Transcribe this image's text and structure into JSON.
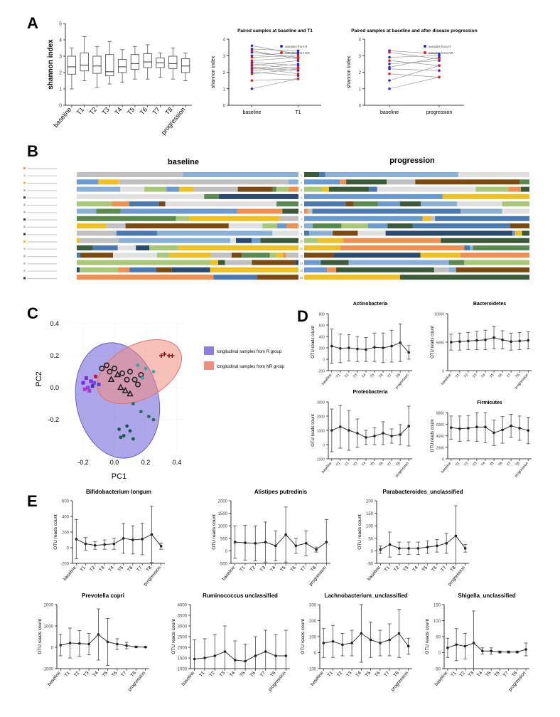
{
  "panel_labels": [
    "A",
    "B",
    "C",
    "D",
    "E"
  ],
  "colors": {
    "r_group": "#6a5cd6",
    "nr_group": "#f08c80",
    "line": "#333333",
    "axis": "#000000",
    "box": "#555555"
  },
  "chart_data": [
    {
      "id": "A1",
      "type": "box",
      "title": "",
      "ylabel": "shannon index",
      "ylim": [
        0,
        5
      ],
      "yticks": [
        0,
        1,
        2,
        3,
        4,
        5
      ],
      "categories": [
        "baseline",
        "T1",
        "T2",
        "T3",
        "T4",
        "T5",
        "T6",
        "T7",
        "T8",
        "progression"
      ],
      "boxes": [
        {
          "min": 1.0,
          "q1": 1.9,
          "median": 2.35,
          "q3": 3.0,
          "max": 3.5
        },
        {
          "min": 1.5,
          "q1": 2.1,
          "median": 2.45,
          "q3": 3.2,
          "max": 4.2
        },
        {
          "min": 1.1,
          "q1": 1.95,
          "median": 2.4,
          "q3": 3.0,
          "max": 3.6
        },
        {
          "min": 1.3,
          "q1": 1.8,
          "median": 2.05,
          "q3": 3.1,
          "max": 3.9
        },
        {
          "min": 1.4,
          "q1": 2.0,
          "median": 2.35,
          "q3": 2.8,
          "max": 3.4
        },
        {
          "min": 1.6,
          "q1": 2.2,
          "median": 2.55,
          "q3": 3.1,
          "max": 3.6
        },
        {
          "min": 1.6,
          "q1": 2.3,
          "median": 2.65,
          "q3": 3.15,
          "max": 3.7
        },
        {
          "min": 1.7,
          "q1": 2.3,
          "median": 2.6,
          "q3": 2.9,
          "max": 3.2
        },
        {
          "min": 1.6,
          "q1": 2.25,
          "median": 2.55,
          "q3": 3.0,
          "max": 3.5
        },
        {
          "min": 1.5,
          "q1": 2.0,
          "median": 2.4,
          "q3": 2.85,
          "max": 3.2
        }
      ]
    },
    {
      "id": "A2",
      "type": "paired",
      "title": "Paired samples at baseline and T1",
      "ylabel": "shannon index",
      "ylim": [
        0,
        4
      ],
      "yticks": [
        0,
        1,
        2,
        3,
        4
      ],
      "categories": [
        "baseline",
        "T1"
      ],
      "legend": [
        "samples from R",
        "samples from NR"
      ],
      "pairs_R": [
        [
          3.6,
          3.1
        ],
        [
          3.4,
          3.3
        ],
        [
          3.2,
          2.9
        ],
        [
          3.0,
          3.2
        ],
        [
          2.6,
          2.4
        ],
        [
          2.4,
          2.7
        ],
        [
          2.3,
          2.1
        ],
        [
          2.2,
          2.5
        ],
        [
          2.0,
          1.8
        ],
        [
          1.0,
          1.6
        ]
      ],
      "pairs_NR": [
        [
          3.3,
          2.8
        ],
        [
          2.9,
          3.0
        ],
        [
          2.7,
          2.9
        ],
        [
          2.3,
          1.9
        ],
        [
          2.1,
          2.3
        ],
        [
          1.9,
          2.2
        ],
        [
          1.5,
          1.6
        ],
        [
          2.5,
          2.2
        ]
      ]
    },
    {
      "id": "A3",
      "type": "paired",
      "title": "Paired samples at baseline and after disease progression",
      "ylabel": "shannon index",
      "ylim": [
        0,
        4
      ],
      "yticks": [
        0,
        1,
        2,
        3,
        4
      ],
      "categories": [
        "baseline",
        "progression"
      ],
      "legend": [
        "samples from R",
        "samples from NR"
      ],
      "pairs_R": [
        [
          3.3,
          3.1
        ],
        [
          2.9,
          3.0
        ],
        [
          2.5,
          2.7
        ],
        [
          2.3,
          2.9
        ],
        [
          2.2,
          2.1
        ],
        [
          1.5,
          2.4
        ],
        [
          1.0,
          1.7
        ]
      ],
      "pairs_NR": [
        [
          3.2,
          2.8
        ],
        [
          2.7,
          2.4
        ],
        [
          1.9,
          1.7
        ]
      ]
    },
    {
      "id": "B",
      "type": "stacked-bar",
      "titles": [
        "baseline",
        "progression"
      ],
      "legend_count": 16,
      "rows": 15
    },
    {
      "id": "C",
      "type": "scatter",
      "xlabel": "PC1",
      "ylabel": "PC2",
      "xlim": [
        -0.3,
        0.45
      ],
      "ylim": [
        -0.4,
        0.4
      ],
      "xticks": [
        -0.2,
        0.0,
        0.2,
        0.4
      ],
      "xtick_labels": [
        "-0.2",
        "0.0",
        "0.2",
        "0.4"
      ],
      "yticks": [
        -0.2,
        0.0,
        0.2,
        0.4
      ],
      "ytick_labels": [
        "-0.2",
        "0.0",
        "0.2",
        "0.4"
      ],
      "legend": [
        "longitudinal samples from R group",
        "longitudinal samples from NR group"
      ],
      "points": [
        {
          "x": -0.2,
          "y": 0.03,
          "c": "#7b2be0",
          "m": "sq"
        },
        {
          "x": -0.18,
          "y": 0.06,
          "c": "#7b2be0",
          "m": "sq"
        },
        {
          "x": -0.17,
          "y": 0.0,
          "c": "#9b3be0",
          "m": "sq"
        },
        {
          "x": -0.15,
          "y": 0.04,
          "c": "#7b2be0",
          "m": "sq"
        },
        {
          "x": -0.16,
          "y": -0.02,
          "c": "#a040d0",
          "m": "sq"
        },
        {
          "x": -0.13,
          "y": 0.03,
          "c": "#8040e0",
          "m": "sq"
        },
        {
          "x": -0.19,
          "y": -0.01,
          "c": "#b030d0",
          "m": "sq"
        },
        {
          "x": -0.12,
          "y": 0.07,
          "c": "#c02040",
          "m": "sq"
        },
        {
          "x": -0.14,
          "y": 0.01,
          "c": "#5030c0",
          "m": "sq"
        },
        {
          "x": -0.1,
          "y": 0.02,
          "c": "#6040d0",
          "m": "sq"
        },
        {
          "x": -0.08,
          "y": 0.12,
          "c": "#222222",
          "m": "o"
        },
        {
          "x": -0.05,
          "y": 0.14,
          "c": "#222222",
          "m": "o"
        },
        {
          "x": -0.03,
          "y": 0.1,
          "c": "#222222",
          "m": "o"
        },
        {
          "x": 0.0,
          "y": 0.12,
          "c": "#222222",
          "m": "o"
        },
        {
          "x": 0.05,
          "y": 0.09,
          "c": "#222222",
          "m": "o"
        },
        {
          "x": 0.08,
          "y": 0.05,
          "c": "#222222",
          "m": "o"
        },
        {
          "x": 0.13,
          "y": 0.05,
          "c": "#222222",
          "m": "o"
        },
        {
          "x": 0.1,
          "y": 0.1,
          "c": "#222222",
          "m": "o"
        },
        {
          "x": 0.15,
          "y": 0.02,
          "c": "#222222",
          "m": "o"
        },
        {
          "x": 0.17,
          "y": 0.08,
          "c": "#222222",
          "m": "o"
        },
        {
          "x": -0.02,
          "y": 0.05,
          "c": "#222222",
          "m": "tri"
        },
        {
          "x": 0.02,
          "y": 0.08,
          "c": "#222222",
          "m": "tri"
        },
        {
          "x": 0.04,
          "y": 0.0,
          "c": "#222222",
          "m": "tri"
        },
        {
          "x": 0.07,
          "y": -0.02,
          "c": "#222222",
          "m": "tri"
        },
        {
          "x": 0.1,
          "y": -0.04,
          "c": "#222222",
          "m": "tri"
        },
        {
          "x": 0.15,
          "y": 0.14,
          "c": "#3aa89a",
          "m": "dot"
        },
        {
          "x": 0.2,
          "y": 0.12,
          "c": "#3aa89a",
          "m": "dot"
        },
        {
          "x": 0.25,
          "y": 0.1,
          "c": "#3aa89a",
          "m": "dot"
        },
        {
          "x": 0.18,
          "y": 0.06,
          "c": "#3aa89a",
          "m": "dot"
        },
        {
          "x": 0.12,
          "y": -0.1,
          "c": "#2a6a5a",
          "m": "dot"
        },
        {
          "x": 0.17,
          "y": -0.15,
          "c": "#2a6a5a",
          "m": "dot"
        },
        {
          "x": 0.22,
          "y": -0.18,
          "c": "#2a6a5a",
          "m": "dot"
        },
        {
          "x": 0.25,
          "y": -0.2,
          "c": "#2a6a5a",
          "m": "dot"
        },
        {
          "x": 0.03,
          "y": -0.26,
          "c": "#1a5a4a",
          "m": "dot"
        },
        {
          "x": 0.06,
          "y": -0.3,
          "c": "#1a5a4a",
          "m": "dot"
        },
        {
          "x": 0.1,
          "y": -0.27,
          "c": "#1a5a4a",
          "m": "dot"
        },
        {
          "x": 0.12,
          "y": -0.32,
          "c": "#1a5a4a",
          "m": "dot"
        },
        {
          "x": 0.08,
          "y": -0.24,
          "c": "#1a5a4a",
          "m": "dot"
        },
        {
          "x": 0.04,
          "y": -0.31,
          "c": "#1a5a4a",
          "m": "dot"
        },
        {
          "x": 0.3,
          "y": 0.2,
          "c": "#8a1010",
          "m": "plus"
        },
        {
          "x": 0.32,
          "y": 0.21,
          "c": "#8a1010",
          "m": "plus"
        },
        {
          "x": 0.35,
          "y": 0.2,
          "c": "#8a1010",
          "m": "plus"
        },
        {
          "x": 0.37,
          "y": 0.2,
          "c": "#8a1010",
          "m": "plus"
        }
      ]
    },
    {
      "id": "D1",
      "type": "line-error",
      "title": "Actinobacteria",
      "ylabel": "OTU reads count",
      "ylim": [
        -200,
        800
      ],
      "yticks": [
        -200,
        0,
        200,
        400,
        600,
        800
      ],
      "categories": [
        "baseline",
        "T1",
        "T2",
        "T3",
        "T4",
        "T5",
        "T6",
        "T7",
        "T8",
        "progression"
      ],
      "values": [
        230,
        190,
        200,
        180,
        170,
        210,
        200,
        230,
        290,
        120
      ],
      "errors": [
        300,
        250,
        230,
        220,
        210,
        250,
        260,
        280,
        330,
        120
      ]
    },
    {
      "id": "D2",
      "type": "line-error",
      "title": "Bacteroidetes",
      "ylabel": "OTU reads count",
      "ylim": [
        0,
        10000
      ],
      "yticks": [
        0,
        5000,
        10000
      ],
      "categories": [
        "baseline",
        "T1",
        "T2",
        "T3",
        "T4",
        "T5",
        "T6",
        "T7",
        "T8",
        "progression"
      ],
      "values": [
        5000,
        5100,
        5200,
        5300,
        5400,
        5800,
        5400,
        5100,
        5200,
        5300
      ],
      "errors": [
        1400,
        1500,
        1500,
        1600,
        1700,
        2000,
        1600,
        1500,
        1500,
        1500
      ]
    },
    {
      "id": "D3",
      "type": "line-error",
      "title": "Proteobacteria",
      "ylabel": "OTU reads count",
      "ylim": [
        -1000,
        3000
      ],
      "yticks": [
        -1000,
        0,
        1000,
        2000,
        3000
      ],
      "categories": [
        "baseline",
        "T1",
        "T2",
        "T3",
        "T4",
        "T5",
        "T6",
        "T7",
        "T8",
        "progression"
      ],
      "values": [
        1000,
        1250,
        1000,
        800,
        500,
        600,
        800,
        600,
        700,
        1300
      ],
      "errors": [
        1500,
        1500,
        1400,
        1000,
        500,
        600,
        800,
        500,
        700,
        1400
      ]
    },
    {
      "id": "D4",
      "type": "line-error",
      "title": "Firmicutes",
      "ylabel": "OTU reads count",
      "ylim": [
        0,
        8000
      ],
      "yticks": [
        0,
        2000,
        4000,
        6000,
        8000
      ],
      "categories": [
        "baseline",
        "T1",
        "T2",
        "T3",
        "T4",
        "T5",
        "T6",
        "T7",
        "T8",
        "progression"
      ],
      "values": [
        5400,
        5200,
        5300,
        5500,
        5500,
        4500,
        5000,
        5700,
        5300,
        4900
      ],
      "errors": [
        2000,
        2200,
        2200,
        2500,
        2700,
        2200,
        2300,
        2000,
        2100,
        2300
      ]
    },
    {
      "id": "E1",
      "type": "line-error",
      "title": "Bifidobacterium longum",
      "ylabel": "OTU reads count",
      "ylim": [
        -200,
        600
      ],
      "yticks": [
        -200,
        0,
        200,
        400,
        600
      ],
      "categories": [
        "baseline",
        "T1",
        "T2",
        "T3",
        "T4",
        "T5",
        "T6",
        "T7",
        "T8",
        "progression"
      ],
      "values": [
        110,
        50,
        30,
        40,
        50,
        120,
        100,
        110,
        170,
        20
      ],
      "errors": [
        250,
        80,
        50,
        60,
        70,
        190,
        180,
        200,
        360,
        40
      ]
    },
    {
      "id": "E2",
      "type": "line-error",
      "title": "Alistipes putredinis",
      "ylabel": "OTU reads count",
      "ylim": [
        -500,
        2000
      ],
      "yticks": [
        -500,
        0,
        500,
        1000,
        1500,
        2000
      ],
      "categories": [
        "baseline",
        "T1",
        "T2",
        "T3",
        "T4",
        "T5",
        "T6",
        "T7",
        "T8",
        "progression"
      ],
      "values": [
        350,
        320,
        300,
        350,
        200,
        650,
        200,
        300,
        50,
        350
      ],
      "errors": [
        650,
        700,
        700,
        800,
        600,
        1100,
        300,
        500,
        100,
        900
      ]
    },
    {
      "id": "E3",
      "type": "line-error",
      "title": "Parabacteroides_unclassified",
      "ylabel": "OTU reads count",
      "ylim": [
        -50,
        200
      ],
      "yticks": [
        -50,
        0,
        50,
        100,
        150,
        200
      ],
      "categories": [
        "baseline",
        "T1",
        "T2",
        "T3",
        "T4",
        "T5",
        "T6",
        "T7",
        "T8",
        "progression"
      ],
      "values": [
        5,
        25,
        10,
        10,
        10,
        15,
        20,
        30,
        60,
        10
      ],
      "errors": [
        15,
        50,
        25,
        25,
        25,
        25,
        25,
        40,
        120,
        15
      ]
    },
    {
      "id": "E4",
      "type": "line-error",
      "title": "Prevotella copri",
      "ylabel": "OTU reads count",
      "ylim": [
        -1000,
        2000
      ],
      "yticks": [
        -1000,
        0,
        1000,
        2000
      ],
      "categories": [
        "baseline",
        "T1",
        "T2",
        "T3",
        "T4",
        "T5",
        "T6",
        "T7",
        "T8",
        "progression"
      ],
      "values": [
        100,
        200,
        180,
        150,
        600,
        250,
        150,
        80,
        20,
        10
      ],
      "errors": [
        500,
        700,
        600,
        500,
        1200,
        1100,
        250,
        150,
        30,
        15
      ]
    },
    {
      "id": "E5",
      "type": "line-error",
      "title": "Ruminococcus unclassified",
      "ylabel": "OTU reads count",
      "ylim": [
        1000,
        4000
      ],
      "yticks": [
        1000,
        1500,
        2000,
        2500,
        3000,
        3500,
        4000
      ],
      "categories": [
        "baseline",
        "T1",
        "T2",
        "T3",
        "T4",
        "T5",
        "T6",
        "T7",
        "T8",
        "progression"
      ],
      "values": [
        1450,
        1500,
        1600,
        1800,
        1400,
        1350,
        1600,
        1800,
        1600,
        1600
      ],
      "errors": [
        900,
        900,
        1000,
        1200,
        900,
        800,
        900,
        1000,
        1000,
        1200
      ]
    },
    {
      "id": "E6",
      "type": "line-error",
      "title": "Lachnobacterium_unclassified",
      "ylabel": "OTU reads count",
      "ylim": [
        -100,
        300
      ],
      "yticks": [
        -100,
        0,
        100,
        200,
        300
      ],
      "categories": [
        "baseline",
        "T1",
        "T2",
        "T3",
        "T4",
        "T5",
        "T6",
        "T7",
        "T8",
        "progression"
      ],
      "values": [
        60,
        70,
        50,
        60,
        120,
        80,
        60,
        80,
        120,
        40
      ],
      "errors": [
        90,
        100,
        70,
        80,
        180,
        110,
        80,
        100,
        150,
        50
      ]
    },
    {
      "id": "E7",
      "type": "line-error",
      "title": "Shigella_unclassified",
      "ylabel": "OTU reads count",
      "ylim": [
        -50,
        150
      ],
      "yticks": [
        -50,
        0,
        50,
        100,
        150
      ],
      "categories": [
        "baseline",
        "T1",
        "T2",
        "T3",
        "T4",
        "T5",
        "T6",
        "T7",
        "T8",
        "progression"
      ],
      "values": [
        15,
        25,
        20,
        30,
        5,
        5,
        2,
        2,
        2,
        10
      ],
      "errors": [
        30,
        50,
        40,
        100,
        10,
        10,
        3,
        3,
        3,
        20
      ]
    }
  ]
}
